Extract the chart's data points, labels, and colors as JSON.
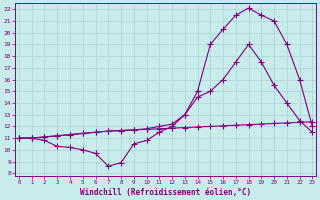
{
  "xlabel": "Windchill (Refroidissement éolien,°C)",
  "bg_color": "#c8ecec",
  "line_color": "#800080",
  "grid_color": "#b0d8d8",
  "x_ticks": [
    0,
    1,
    2,
    3,
    4,
    5,
    6,
    7,
    8,
    9,
    10,
    11,
    12,
    13,
    14,
    15,
    16,
    17,
    18,
    19,
    20,
    21,
    22,
    23
  ],
  "y_ticks": [
    8,
    9,
    10,
    11,
    12,
    13,
    14,
    15,
    16,
    17,
    18,
    19,
    20,
    21,
    22
  ],
  "ylim": [
    7.8,
    22.5
  ],
  "xlim": [
    -0.3,
    23.3
  ],
  "curve1_x": [
    0,
    1,
    2,
    3,
    4,
    5,
    6,
    7,
    8,
    9,
    10,
    11,
    12,
    13,
    14,
    15,
    16,
    17,
    18,
    19,
    20,
    21,
    22,
    23
  ],
  "curve1_y": [
    11.0,
    11.0,
    10.8,
    10.3,
    10.2,
    10.0,
    9.7,
    8.6,
    8.9,
    10.5,
    10.8,
    11.5,
    12.0,
    13.0,
    15.0,
    19.0,
    20.3,
    21.5,
    22.1,
    21.5,
    21.0,
    19.0,
    16.0,
    12.0
  ],
  "curve2_x": [
    0,
    1,
    2,
    3,
    4,
    5,
    6,
    7,
    8,
    9,
    10,
    11,
    12,
    13,
    14,
    15,
    16,
    17,
    18,
    19,
    20,
    21,
    22,
    23
  ],
  "curve2_y": [
    11.0,
    11.0,
    11.1,
    11.2,
    11.3,
    11.4,
    11.5,
    11.6,
    11.65,
    11.7,
    11.75,
    11.8,
    11.85,
    11.9,
    11.95,
    12.0,
    12.05,
    12.1,
    12.15,
    12.2,
    12.25,
    12.3,
    12.35,
    12.4
  ],
  "curve3_x": [
    0,
    1,
    2,
    3,
    4,
    5,
    6,
    7,
    8,
    9,
    10,
    11,
    12,
    13,
    14,
    15,
    16,
    17,
    18,
    19,
    20,
    21,
    22,
    23
  ],
  "curve3_y": [
    11.0,
    11.0,
    11.1,
    11.2,
    11.3,
    11.4,
    11.5,
    11.6,
    11.65,
    11.7,
    11.8,
    12.0,
    12.2,
    13.0,
    14.5,
    15.0,
    16.0,
    17.5,
    19.0,
    17.5,
    15.5,
    14.0,
    12.5,
    11.5
  ]
}
